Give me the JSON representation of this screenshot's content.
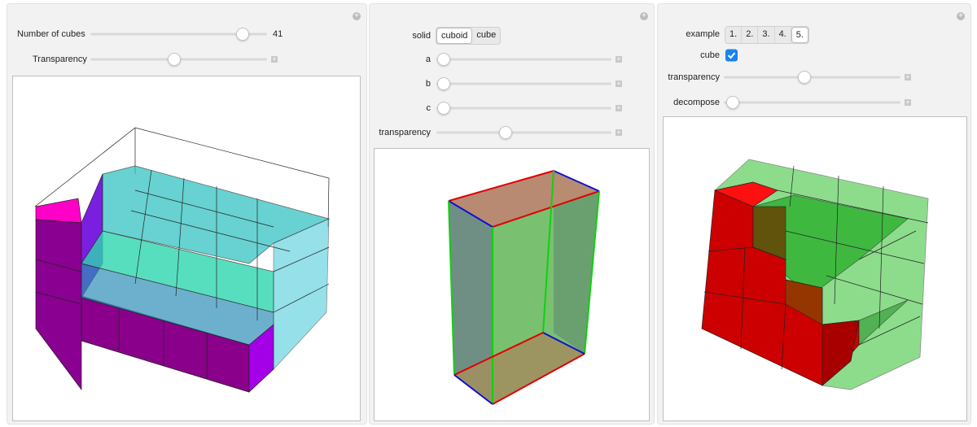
{
  "panels": [
    {
      "controls": [
        {
          "label": "Number of cubes",
          "value": 41
        },
        {
          "label": "Transparency"
        }
      ]
    },
    {
      "controls": [
        {
          "label": "solid",
          "options": [
            "cuboid",
            "cube"
          ]
        },
        {
          "label": "a"
        },
        {
          "label": "b"
        },
        {
          "label": "c"
        },
        {
          "label": "transparency"
        }
      ]
    },
    {
      "controls": [
        {
          "label": "example",
          "options": [
            "1.",
            "2.",
            "3.",
            "4.",
            "5."
          ]
        },
        {
          "label": "cube"
        },
        {
          "label": "transparency"
        },
        {
          "label": "decompose"
        }
      ]
    }
  ]
}
